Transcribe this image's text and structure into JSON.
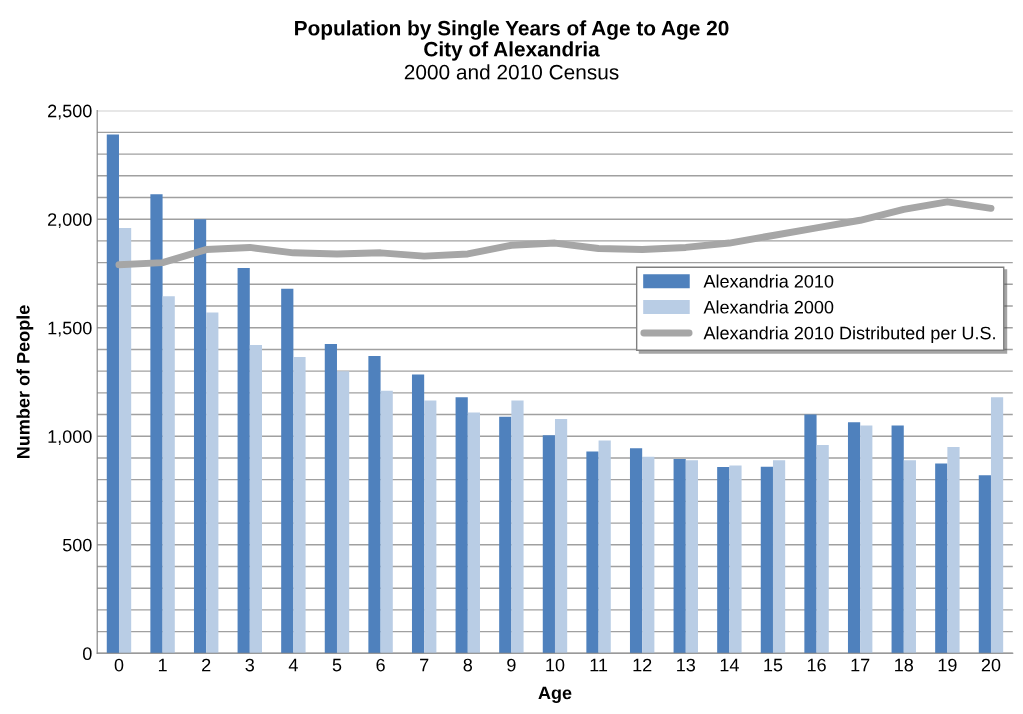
{
  "chart_data": {
    "type": "bar",
    "title": "Population by Single Years of Age to Age 20\nCity of Alexandria",
    "subtitle": "2000 and 2010 Census",
    "xlabel": "Age",
    "ylabel": "Number of People",
    "categories": [
      "0",
      "1",
      "2",
      "3",
      "4",
      "5",
      "6",
      "7",
      "8",
      "9",
      "10",
      "11",
      "12",
      "13",
      "14",
      "15",
      "16",
      "17",
      "18",
      "19",
      "20"
    ],
    "series": [
      {
        "name": "Alexandria 2010",
        "color": "#4f81bd",
        "values": [
          2390,
          2115,
          2000,
          1775,
          1680,
          1425,
          1370,
          1285,
          1180,
          1090,
          1005,
          930,
          945,
          895,
          858,
          860,
          1100,
          1065,
          1050,
          875,
          820
        ]
      },
      {
        "name": "Alexandria 2000",
        "color": "#b9cde5",
        "values": [
          1960,
          1645,
          1570,
          1420,
          1365,
          1300,
          1210,
          1165,
          1110,
          1165,
          1080,
          980,
          905,
          890,
          865,
          890,
          960,
          1050,
          890,
          950,
          1180
        ]
      },
      {
        "name": "Alexandria 2010 Distributed per U.S.",
        "type": "line",
        "color": "#a6a6a6",
        "values": [
          1790,
          1800,
          1860,
          1870,
          1845,
          1840,
          1845,
          1830,
          1840,
          1880,
          1890,
          1865,
          1860,
          1870,
          1890,
          1925,
          1960,
          1995,
          2045,
          2080,
          2050
        ]
      }
    ],
    "ylim": [
      0,
      2500
    ],
    "yticks": [
      {
        "value": 0,
        "label": "0"
      },
      {
        "value": 100,
        "label": null
      },
      {
        "value": 200,
        "label": null
      },
      {
        "value": 300,
        "label": null
      },
      {
        "value": 400,
        "label": null
      },
      {
        "value": 500,
        "label": "500"
      },
      {
        "value": 600,
        "label": null
      },
      {
        "value": 700,
        "label": null
      },
      {
        "value": 800,
        "label": null
      },
      {
        "value": 900,
        "label": null
      },
      {
        "value": 1000,
        "label": "1,000"
      },
      {
        "value": 1100,
        "label": null
      },
      {
        "value": 1200,
        "label": null
      },
      {
        "value": 1300,
        "label": null
      },
      {
        "value": 1400,
        "label": null
      },
      {
        "value": 1500,
        "label": "1,500"
      },
      {
        "value": 1600,
        "label": null
      },
      {
        "value": 1700,
        "label": null
      },
      {
        "value": 1800,
        "label": null
      },
      {
        "value": 1900,
        "label": null
      },
      {
        "value": 2000,
        "label": "2,000"
      },
      {
        "value": 2100,
        "label": null
      },
      {
        "value": 2200,
        "label": null
      },
      {
        "value": 2300,
        "label": null
      },
      {
        "value": 2400,
        "label": null
      },
      {
        "value": 2500,
        "label": "2,500"
      }
    ],
    "grid": "y",
    "legend": "right",
    "marker": "none",
    "line_style": "solid"
  }
}
